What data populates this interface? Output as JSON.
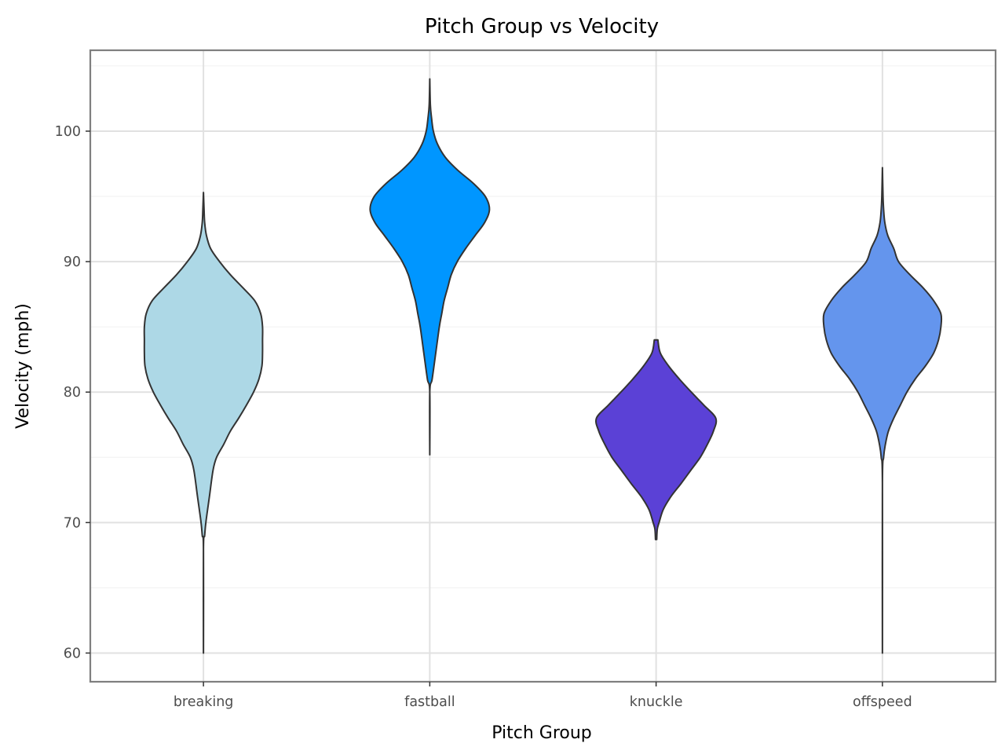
{
  "chart_data": {
    "type": "violin",
    "title": "Pitch Group vs Velocity",
    "xlabel": "Pitch Group",
    "ylabel": "Velocity (mph)",
    "categories": [
      "breaking",
      "fastball",
      "knuckle",
      "offspeed"
    ],
    "ylim": [
      57.8,
      106.2
    ],
    "yticks": [
      60,
      70,
      80,
      90,
      100
    ],
    "grid": true,
    "legend": "none",
    "colors": [
      "#add8e6",
      "#0096ff",
      "#5b41d6",
      "#6495ed"
    ],
    "outline_color": "#333333",
    "series": [
      {
        "category": "breaking",
        "min": 60.0,
        "max": 95.3,
        "density": [
          [
            60.0,
            0.0
          ],
          [
            68.0,
            0.0
          ],
          [
            69.0,
            0.02
          ],
          [
            70.0,
            0.04
          ],
          [
            72.0,
            0.1
          ],
          [
            74.0,
            0.16
          ],
          [
            75.0,
            0.22
          ],
          [
            76.0,
            0.34
          ],
          [
            77.0,
            0.45
          ],
          [
            78.0,
            0.59
          ],
          [
            79.0,
            0.72
          ],
          [
            80.0,
            0.84
          ],
          [
            81.0,
            0.93
          ],
          [
            82.0,
            0.98
          ],
          [
            83.0,
            0.99
          ],
          [
            84.0,
            0.99
          ],
          [
            85.0,
            0.99
          ],
          [
            86.0,
            0.96
          ],
          [
            87.0,
            0.86
          ],
          [
            88.0,
            0.66
          ],
          [
            89.0,
            0.45
          ],
          [
            90.0,
            0.27
          ],
          [
            91.0,
            0.12
          ],
          [
            92.0,
            0.05
          ],
          [
            93.0,
            0.02
          ],
          [
            94.0,
            0.01
          ],
          [
            95.3,
            0.0
          ]
        ]
      },
      {
        "category": "fastball",
        "min": 75.2,
        "max": 104.0,
        "density": [
          [
            75.2,
            0.0
          ],
          [
            80.0,
            0.0
          ],
          [
            81.0,
            0.04
          ],
          [
            83.0,
            0.1
          ],
          [
            85.0,
            0.16
          ],
          [
            86.0,
            0.2
          ],
          [
            87.0,
            0.24
          ],
          [
            88.0,
            0.3
          ],
          [
            89.0,
            0.36
          ],
          [
            90.0,
            0.46
          ],
          [
            91.0,
            0.6
          ],
          [
            92.0,
            0.76
          ],
          [
            93.0,
            0.92
          ],
          [
            94.0,
            1.0
          ],
          [
            95.0,
            0.93
          ],
          [
            96.0,
            0.73
          ],
          [
            97.0,
            0.47
          ],
          [
            98.0,
            0.26
          ],
          [
            99.0,
            0.13
          ],
          [
            100.0,
            0.06
          ],
          [
            101.0,
            0.03
          ],
          [
            102.0,
            0.01
          ],
          [
            104.0,
            0.0
          ]
        ]
      },
      {
        "category": "knuckle",
        "min": 68.7,
        "max": 84.0,
        "density": [
          [
            68.7,
            0.01
          ],
          [
            69.5,
            0.02
          ],
          [
            70.0,
            0.05
          ],
          [
            71.0,
            0.12
          ],
          [
            72.0,
            0.25
          ],
          [
            73.0,
            0.42
          ],
          [
            74.0,
            0.58
          ],
          [
            75.0,
            0.74
          ],
          [
            76.0,
            0.86
          ],
          [
            77.0,
            0.96
          ],
          [
            78.0,
            1.0
          ],
          [
            79.0,
            0.8
          ],
          [
            80.0,
            0.59
          ],
          [
            81.0,
            0.39
          ],
          [
            82.0,
            0.21
          ],
          [
            83.0,
            0.07
          ],
          [
            84.0,
            0.03
          ]
        ]
      },
      {
        "category": "offspeed",
        "min": 60.0,
        "max": 97.2,
        "density": [
          [
            60.0,
            0.0
          ],
          [
            73.0,
            0.0
          ],
          [
            75.0,
            0.02
          ],
          [
            76.0,
            0.05
          ],
          [
            77.0,
            0.1
          ],
          [
            78.0,
            0.19
          ],
          [
            79.0,
            0.3
          ],
          [
            80.0,
            0.41
          ],
          [
            81.0,
            0.55
          ],
          [
            82.0,
            0.72
          ],
          [
            83.0,
            0.86
          ],
          [
            84.0,
            0.94
          ],
          [
            85.0,
            0.98
          ],
          [
            86.0,
            0.98
          ],
          [
            87.0,
            0.86
          ],
          [
            88.0,
            0.68
          ],
          [
            89.0,
            0.46
          ],
          [
            90.0,
            0.27
          ],
          [
            91.0,
            0.19
          ],
          [
            92.0,
            0.09
          ],
          [
            93.0,
            0.04
          ],
          [
            94.0,
            0.02
          ],
          [
            95.0,
            0.01
          ],
          [
            97.2,
            0.0
          ]
        ]
      }
    ]
  }
}
